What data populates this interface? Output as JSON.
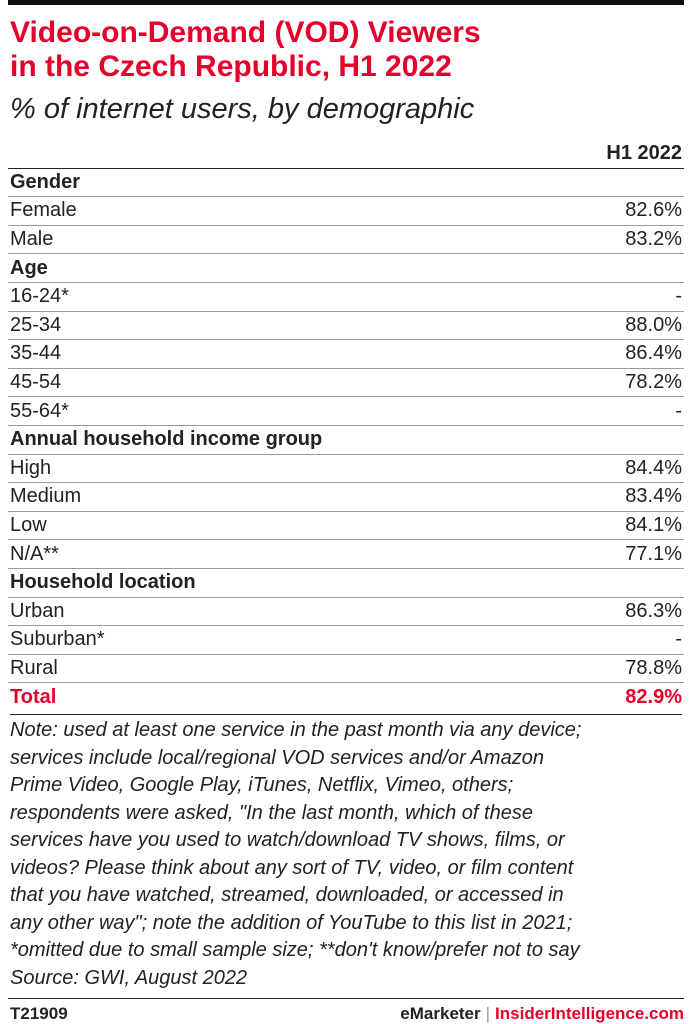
{
  "title_lines": [
    "Video-on-Demand (VOD) Viewers",
    "in the Czech Republic, H1 2022"
  ],
  "subtitle": "% of internet users, by demographic",
  "column_header": "H1 2022",
  "colors": {
    "accent": "#e4002b",
    "text": "#222222",
    "rule": "#9a9a9a"
  },
  "chart_data": {
    "type": "table",
    "title": "Video-on-Demand (VOD) Viewers in the Czech Republic, H1 2022",
    "subtitle": "% of internet users, by demographic",
    "columns": [
      "H1 2022"
    ],
    "rows": [
      {
        "label": "Gender",
        "group": true,
        "value": ""
      },
      {
        "label": "Female",
        "value": "82.6%"
      },
      {
        "label": "Male",
        "value": "83.2%"
      },
      {
        "label": "Age",
        "group": true,
        "value": ""
      },
      {
        "label": "16-24*",
        "value": "-"
      },
      {
        "label": "25-34",
        "value": "88.0%"
      },
      {
        "label": "35-44",
        "value": "86.4%"
      },
      {
        "label": "45-54",
        "value": "78.2%"
      },
      {
        "label": "55-64*",
        "value": "-"
      },
      {
        "label": "Annual household income group",
        "group": true,
        "value": ""
      },
      {
        "label": "High",
        "value": "84.4%"
      },
      {
        "label": "Medium",
        "value": "83.4%"
      },
      {
        "label": "Low",
        "value": "84.1%"
      },
      {
        "label": "N/A**",
        "value": "77.1%"
      },
      {
        "label": "Household location",
        "group": true,
        "value": ""
      },
      {
        "label": "Urban",
        "value": "86.3%"
      },
      {
        "label": "Suburban*",
        "value": "-"
      },
      {
        "label": "Rural",
        "value": "78.8%"
      },
      {
        "label": "Total",
        "total": true,
        "value": "82.9%"
      }
    ]
  },
  "note_lines": [
    "Note: used at least one service in the past month via any device;",
    "services include local/regional VOD services and/or Amazon",
    "Prime Video, Google Play, iTunes, Netflix, Vimeo, others;",
    "respondents were asked, \"In the last month, which of these",
    "services have you used to watch/download TV shows, films, or",
    "videos? Please think about any sort of TV, video, or film content",
    "that you have watched, streamed, downloaded, or accessed in",
    "any other way\"; note the addition of YouTube to this list in 2021;",
    "*omitted due to small sample size; **don't know/prefer not to say",
    "Source: GWI, August 2022"
  ],
  "footer": {
    "id": "T21909",
    "brand1": "eMarketer",
    "separator": "|",
    "brand2": "InsiderIntelligence.com"
  }
}
